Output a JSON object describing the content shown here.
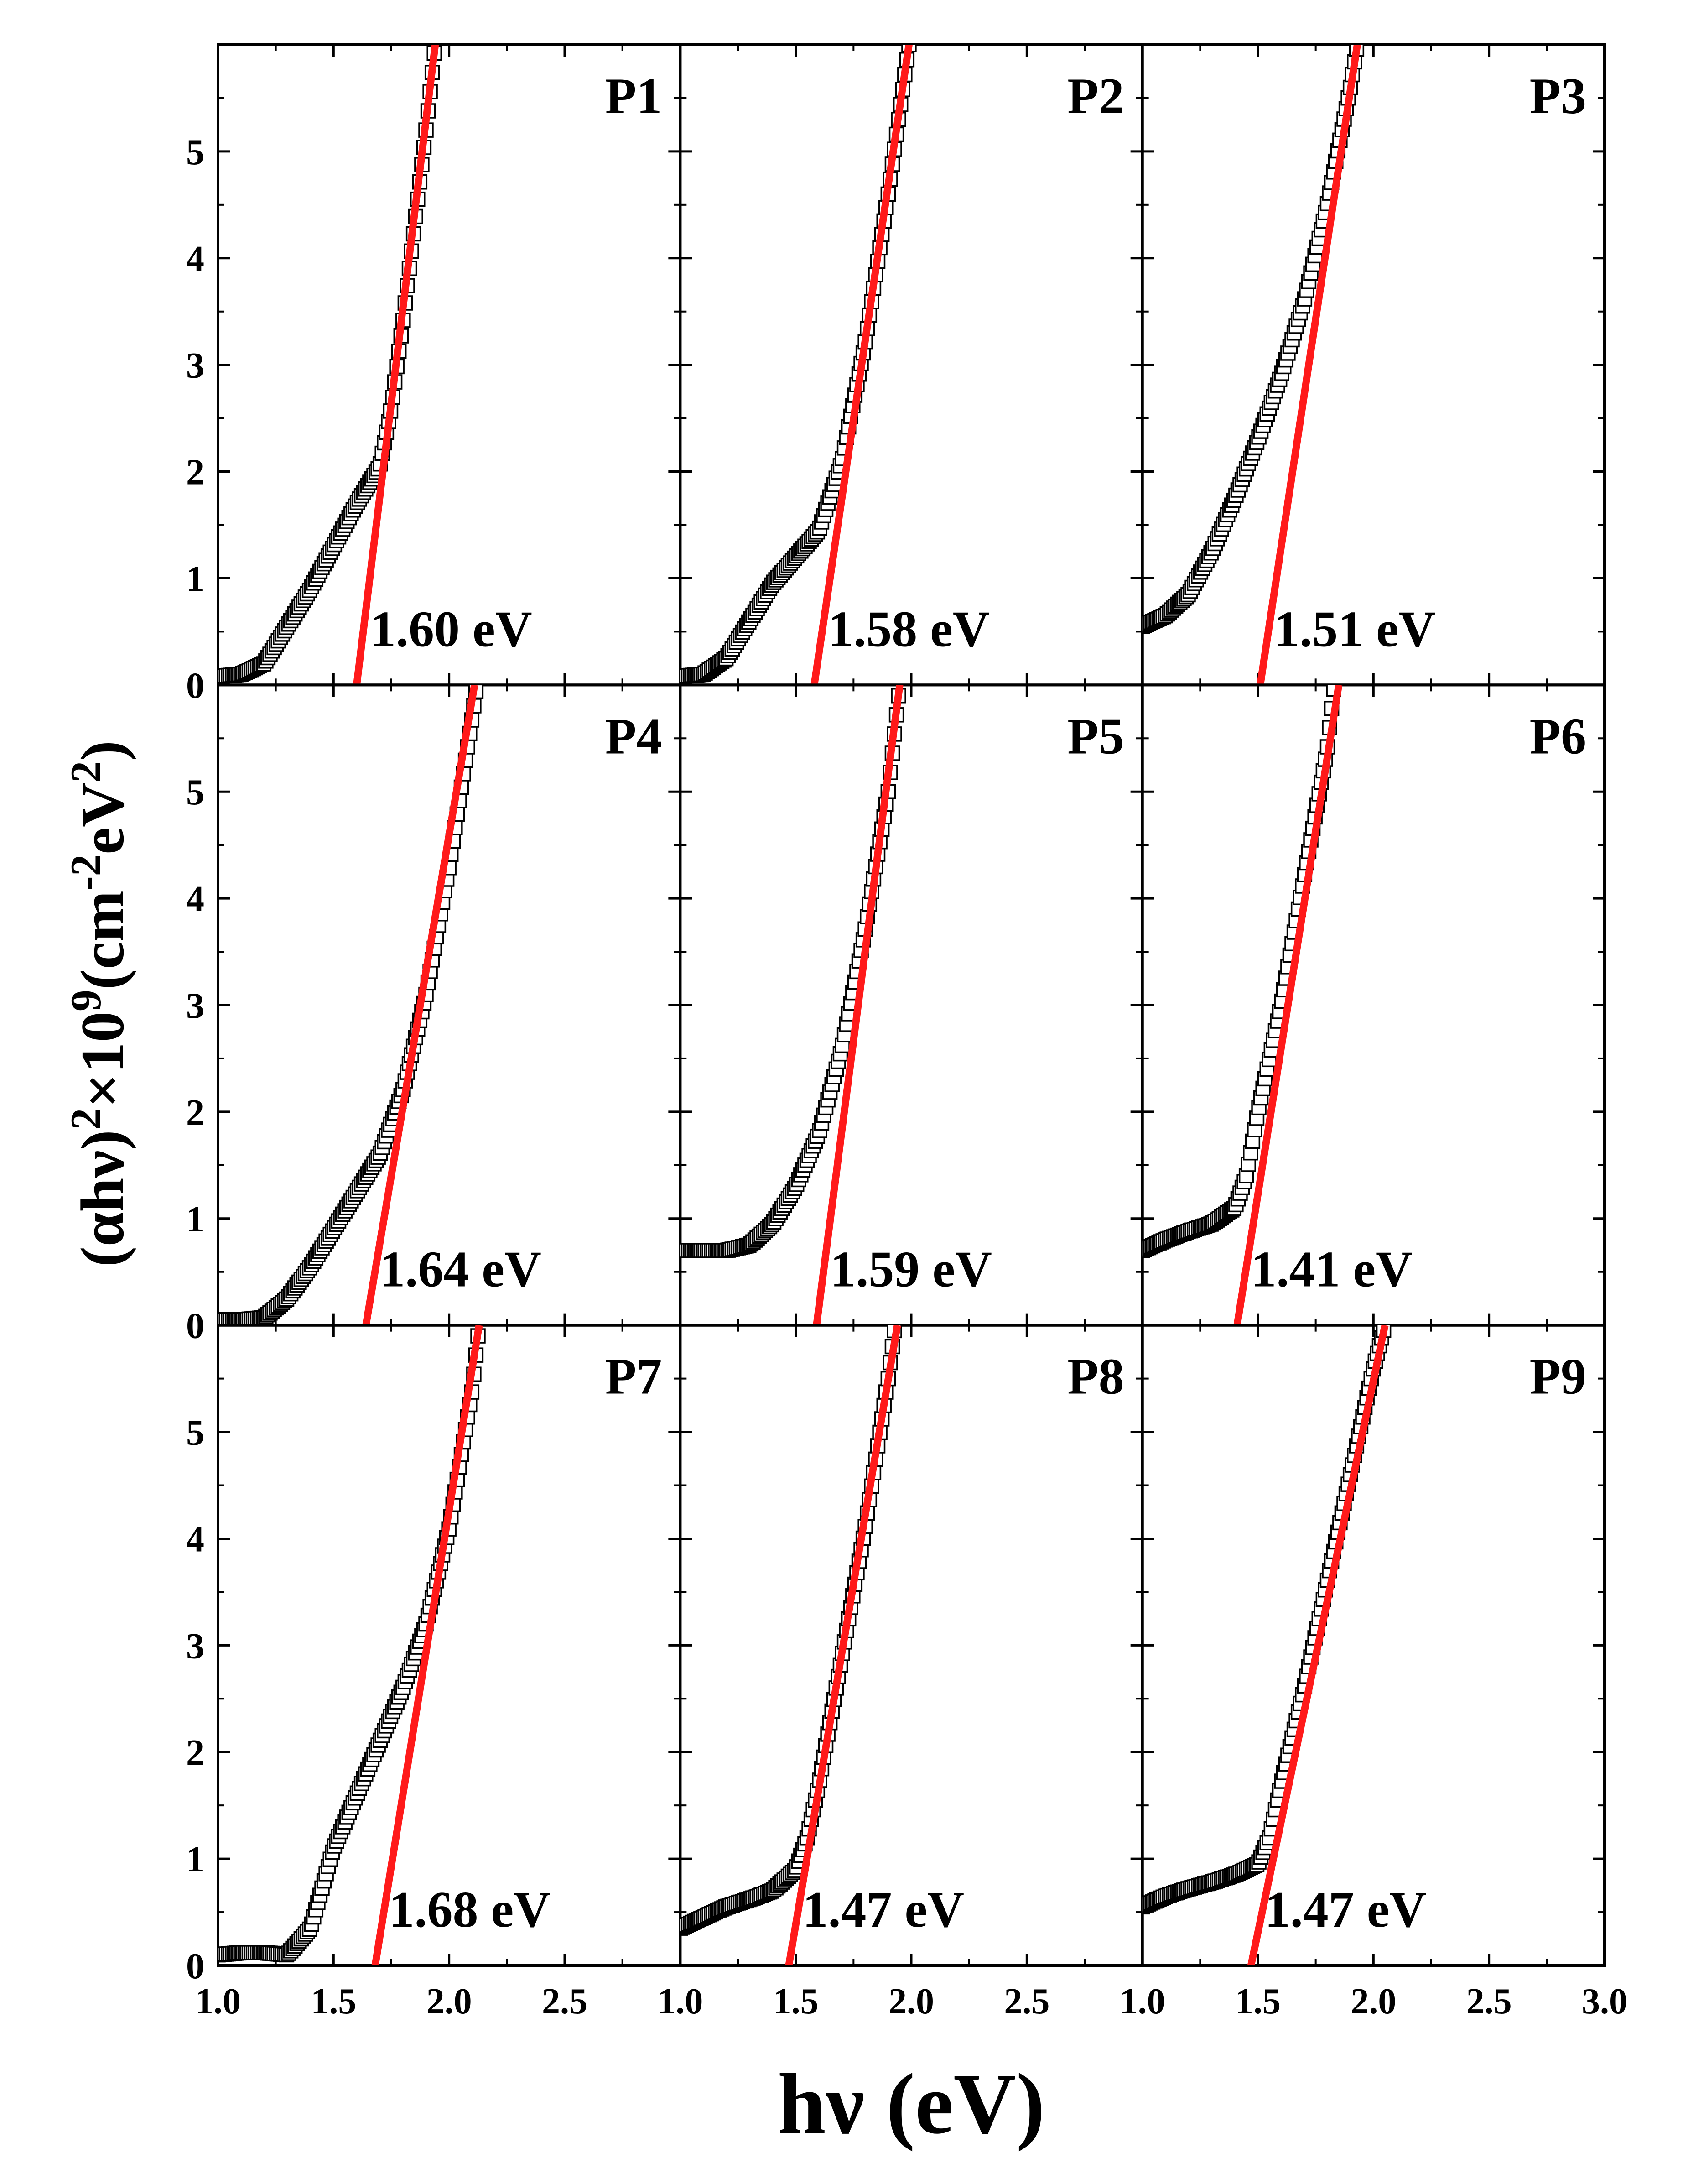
{
  "chart_data": {
    "type": "scatter",
    "layout": "3x3 grid of panels sharing axes",
    "xlabel": "hν (eV)",
    "ylabel": "(αhν)²×10⁹(cm⁻²eV²)",
    "ylabel_parts": {
      "open": "(αhν)",
      "sup1": "2",
      "mid": "×10",
      "sup2": "9",
      "unit_open": "(cm",
      "sup3": "-2",
      "unit_mid": "eV",
      "sup4": "2",
      "close": ")"
    },
    "xlim": [
      1.0,
      3.0
    ],
    "ylim": [
      0,
      6
    ],
    "x_ticks": [
      1.0,
      1.5,
      2.0,
      2.5,
      3.0
    ],
    "x_tick_labels": [
      "1.0",
      "1.5",
      "2.0",
      "2.5",
      "3.0"
    ],
    "y_ticks": [
      0,
      1,
      2,
      3,
      4,
      5
    ],
    "y_tick_labels": [
      "0",
      "1",
      "2",
      "3",
      "4",
      "5"
    ],
    "marker": "open-square",
    "fit_line_color": "#ff1a1a",
    "panels": [
      {
        "label": "P1",
        "band_gap": 1.6,
        "band_gap_label": "1.60 eV",
        "fit_x_at_top": 1.94,
        "points": [
          [
            1.0,
            0.08
          ],
          [
            1.1,
            0.1
          ],
          [
            1.2,
            0.2
          ],
          [
            1.3,
            0.55
          ],
          [
            1.4,
            0.9
          ],
          [
            1.5,
            1.3
          ],
          [
            1.6,
            1.7
          ],
          [
            1.7,
            2.05
          ],
          [
            1.75,
            2.6
          ],
          [
            1.8,
            3.4
          ],
          [
            1.85,
            4.3
          ],
          [
            1.9,
            5.2
          ],
          [
            1.94,
            6.0
          ]
        ]
      },
      {
        "label": "P2",
        "band_gap": 1.58,
        "band_gap_label": "1.58 eV",
        "fit_x_at_top": 1.99,
        "points": [
          [
            1.0,
            0.08
          ],
          [
            1.1,
            0.1
          ],
          [
            1.2,
            0.25
          ],
          [
            1.3,
            0.6
          ],
          [
            1.4,
            0.95
          ],
          [
            1.5,
            1.2
          ],
          [
            1.6,
            1.45
          ],
          [
            1.7,
            2.1
          ],
          [
            1.8,
            3.2
          ],
          [
            1.9,
            4.6
          ],
          [
            1.99,
            6.0
          ]
        ]
      },
      {
        "label": "P3",
        "band_gap": 1.51,
        "band_gap_label": "1.51 eV",
        "fit_x_at_top": 1.93,
        "points": [
          [
            1.0,
            0.55
          ],
          [
            1.1,
            0.65
          ],
          [
            1.2,
            0.85
          ],
          [
            1.3,
            1.25
          ],
          [
            1.4,
            1.75
          ],
          [
            1.5,
            2.3
          ],
          [
            1.6,
            2.9
          ],
          [
            1.7,
            3.6
          ],
          [
            1.8,
            4.5
          ],
          [
            1.9,
            5.6
          ],
          [
            1.93,
            6.0
          ]
        ]
      },
      {
        "label": "P4",
        "band_gap": 1.64,
        "band_gap_label": "1.64 eV",
        "fit_x_at_top": 2.11,
        "points": [
          [
            1.0,
            0.05
          ],
          [
            1.1,
            0.05
          ],
          [
            1.2,
            0.07
          ],
          [
            1.3,
            0.25
          ],
          [
            1.4,
            0.55
          ],
          [
            1.5,
            0.9
          ],
          [
            1.6,
            1.25
          ],
          [
            1.7,
            1.6
          ],
          [
            1.8,
            2.2
          ],
          [
            1.9,
            3.1
          ],
          [
            2.0,
            4.3
          ],
          [
            2.1,
            5.7
          ],
          [
            2.12,
            6.0
          ]
        ]
      },
      {
        "label": "P5",
        "band_gap": 1.59,
        "band_gap_label": "1.59 eV",
        "fit_x_at_top": 1.95,
        "points": [
          [
            1.0,
            0.7
          ],
          [
            1.1,
            0.7
          ],
          [
            1.2,
            0.7
          ],
          [
            1.3,
            0.75
          ],
          [
            1.4,
            0.95
          ],
          [
            1.5,
            1.3
          ],
          [
            1.6,
            1.8
          ],
          [
            1.7,
            2.6
          ],
          [
            1.8,
            3.7
          ],
          [
            1.9,
            5.0
          ],
          [
            1.95,
            6.0
          ]
        ]
      },
      {
        "label": "P6",
        "band_gap": 1.41,
        "band_gap_label": "1.41 eV",
        "fit_x_at_top": 1.85,
        "points": [
          [
            1.0,
            0.7
          ],
          [
            1.1,
            0.8
          ],
          [
            1.2,
            0.88
          ],
          [
            1.3,
            0.95
          ],
          [
            1.4,
            1.1
          ],
          [
            1.45,
            1.4
          ],
          [
            1.5,
            2.0
          ],
          [
            1.6,
            3.0
          ],
          [
            1.7,
            4.2
          ],
          [
            1.8,
            5.4
          ],
          [
            1.83,
            6.0
          ]
        ]
      },
      {
        "label": "P7",
        "band_gap": 1.68,
        "band_gap_label": "1.68 eV",
        "fit_x_at_top": 2.13,
        "points": [
          [
            1.0,
            0.1
          ],
          [
            1.1,
            0.12
          ],
          [
            1.2,
            0.12
          ],
          [
            1.3,
            0.1
          ],
          [
            1.4,
            0.35
          ],
          [
            1.5,
            1.1
          ],
          [
            1.6,
            1.6
          ],
          [
            1.7,
            2.1
          ],
          [
            1.8,
            2.6
          ],
          [
            1.9,
            3.2
          ],
          [
            2.0,
            4.1
          ],
          [
            2.1,
            5.4
          ],
          [
            2.13,
            6.0
          ]
        ]
      },
      {
        "label": "P8",
        "band_gap": 1.47,
        "band_gap_label": "1.47 eV",
        "fit_x_at_top": 1.94,
        "points": [
          [
            1.0,
            0.35
          ],
          [
            1.1,
            0.45
          ],
          [
            1.2,
            0.55
          ],
          [
            1.3,
            0.62
          ],
          [
            1.4,
            0.7
          ],
          [
            1.5,
            0.9
          ],
          [
            1.55,
            1.2
          ],
          [
            1.6,
            1.7
          ],
          [
            1.7,
            2.9
          ],
          [
            1.8,
            4.1
          ],
          [
            1.9,
            5.5
          ],
          [
            1.93,
            6.0
          ]
        ]
      },
      {
        "label": "P9",
        "band_gap": 1.47,
        "band_gap_label": "1.47 eV",
        "fit_x_at_top": 2.05,
        "points": [
          [
            1.0,
            0.55
          ],
          [
            1.1,
            0.65
          ],
          [
            1.2,
            0.72
          ],
          [
            1.3,
            0.78
          ],
          [
            1.4,
            0.85
          ],
          [
            1.5,
            0.95
          ],
          [
            1.55,
            1.2
          ],
          [
            1.6,
            1.7
          ],
          [
            1.7,
            2.6
          ],
          [
            1.8,
            3.6
          ],
          [
            1.9,
            4.6
          ],
          [
            2.0,
            5.6
          ],
          [
            2.05,
            6.0
          ]
        ]
      }
    ]
  }
}
